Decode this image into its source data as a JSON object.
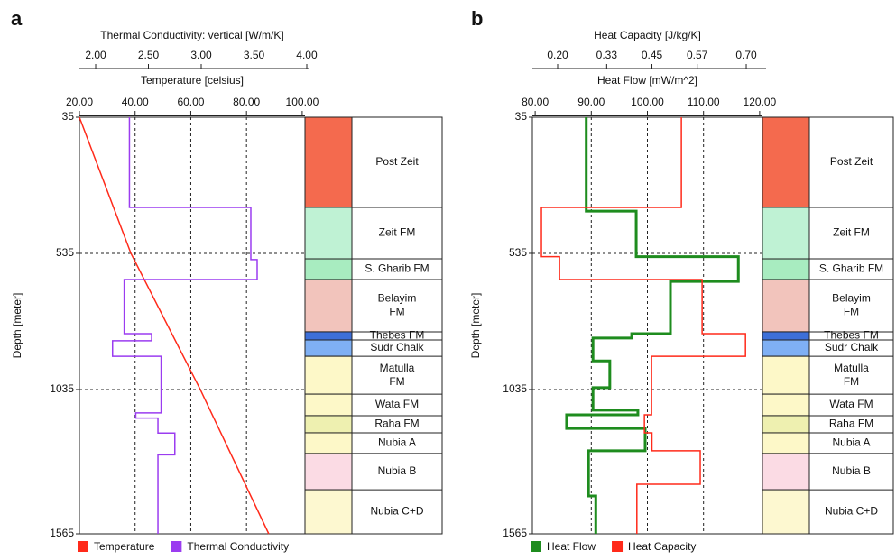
{
  "chart_data": [
    {
      "type": "well-log",
      "panel": "a",
      "x2label": "Thermal Conductivity: vertical [W/m/K]",
      "x2lim": [
        1.846,
        3.983
      ],
      "x2ticks": [
        {
          "value": 2.0,
          "label": "2.00"
        },
        {
          "value": 2.5,
          "label": "2.50"
        },
        {
          "value": 3.0,
          "label": "3.00"
        },
        {
          "value": 3.5,
          "label": "3.50"
        },
        {
          "value": 4.0,
          "label": "4.00"
        }
      ],
      "xlabel": "Temperature [celsius]",
      "xlim": [
        20,
        101
      ],
      "xticks": [
        {
          "value": 20,
          "label": "20.00"
        },
        {
          "value": 40,
          "label": "40.00"
        },
        {
          "value": 60,
          "label": "60.00"
        },
        {
          "value": 80,
          "label": "80.00"
        },
        {
          "value": 100,
          "label": "100.00"
        }
      ],
      "ylabel": "Depth [meter]",
      "ylim": [
        35,
        1565
      ],
      "yticks": [
        35,
        535,
        1035,
        1565
      ],
      "grid": true,
      "series": [
        {
          "name": "Temperature",
          "color": "#ff2a1a",
          "values": [
            20,
            38.5,
            63.4,
            88
          ],
          "depth": [
            35,
            535,
            1035,
            1565
          ]
        },
        {
          "name": "Thermal Conductivity",
          "color": "#9b3cf0",
          "axis": "x2",
          "values": [
            2.32,
            2.32,
            3.47,
            3.47,
            3.53,
            3.53,
            2.27,
            2.27,
            2.53,
            2.53,
            2.16,
            2.16,
            2.62,
            2.62,
            2.38,
            2.38,
            2.59,
            2.59,
            2.75,
            2.75,
            2.59,
            2.59
          ],
          "depth": [
            35,
            366,
            366,
            558,
            558,
            631,
            631,
            830,
            830,
            856,
            856,
            913,
            913,
            1121,
            1121,
            1140,
            1140,
            1195,
            1195,
            1275,
            1275,
            1565
          ]
        }
      ],
      "formations": [
        {
          "label": [
            "Post Zeit"
          ],
          "top": 35,
          "bottom": 366,
          "fill": "#f46a4e"
        },
        {
          "label": [
            "Zeit FM"
          ],
          "top": 366,
          "bottom": 555,
          "fill": "#bff2d4"
        },
        {
          "label": [
            "S. Gharib FM"
          ],
          "top": 555,
          "bottom": 631,
          "fill": "#a8ecc0"
        },
        {
          "label": [
            "Belayim",
            "FM"
          ],
          "top": 631,
          "bottom": 823,
          "fill": "#f2c4bc"
        },
        {
          "label": [
            "Thebes FM"
          ],
          "top": 823,
          "bottom": 853,
          "fill": "#3d6fd8"
        },
        {
          "label": [
            "Sudr Chalk"
          ],
          "top": 853,
          "bottom": 913,
          "fill": "#7fb0f4"
        },
        {
          "label": [
            "Matulla",
            "FM"
          ],
          "top": 913,
          "bottom": 1052,
          "fill": "#fdf8c8"
        },
        {
          "label": [
            "Wata FM"
          ],
          "top": 1052,
          "bottom": 1131,
          "fill": "#fdf8c8"
        },
        {
          "label": [
            "Raha FM"
          ],
          "top": 1131,
          "bottom": 1194,
          "fill": "#eef0b0"
        },
        {
          "label": [
            "Nubia  A"
          ],
          "top": 1194,
          "bottom": 1270,
          "fill": "#fdf8c8"
        },
        {
          "label": [
            "Nubia B"
          ],
          "top": 1270,
          "bottom": 1403,
          "fill": "#fbdbe4"
        },
        {
          "label": [
            "Nubia C+D"
          ],
          "top": 1403,
          "bottom": 1565,
          "fill": "#fdf8d0"
        }
      ]
    },
    {
      "type": "well-log",
      "panel": "b",
      "x2label": "Heat Capacity [J/kg/K]",
      "x2lim": [
        0.133,
        0.743
      ],
      "x2ticks": [
        {
          "value": 0.2,
          "label": "0.20"
        },
        {
          "value": 0.33,
          "label": "0.33"
        },
        {
          "value": 0.45,
          "label": "0.45"
        },
        {
          "value": 0.57,
          "label": "0.57"
        },
        {
          "value": 0.7,
          "label": "0.70"
        }
      ],
      "xlabel": "Heat Flow [mW/m^2]",
      "xlim": [
        79.5,
        120.5
      ],
      "xticks": [
        {
          "value": 80,
          "label": "80.00"
        },
        {
          "value": 90,
          "label": "90.00"
        },
        {
          "value": 100,
          "label": "100.00"
        },
        {
          "value": 110,
          "label": "110.00"
        },
        {
          "value": 120,
          "label": "120.00"
        }
      ],
      "ylabel": "Depth [meter]",
      "ylim": [
        35,
        1565
      ],
      "yticks": [
        35,
        535,
        1035,
        1565
      ],
      "grid": true,
      "series": [
        {
          "name": "Heat Flow",
          "color": "#1e8c1e",
          "values": [
            89.1,
            89.1,
            98.0,
            98.0,
            116.2,
            116.2,
            104.1,
            104.1,
            97.2,
            97.2,
            90.3,
            90.3,
            93.3,
            93.3,
            90.3,
            90.3,
            98.3,
            98.3,
            85.6,
            85.6,
            99.6,
            99.6,
            89.5,
            89.5,
            90.8,
            90.8
          ],
          "depth": [
            35,
            380,
            380,
            547,
            547,
            638,
            638,
            830,
            830,
            846,
            846,
            930,
            930,
            1028,
            1028,
            1111,
            1111,
            1128,
            1128,
            1178,
            1178,
            1260,
            1260,
            1426,
            1426,
            1565
          ]
        },
        {
          "name": "Heat Capacity",
          "color": "#ff2a1a",
          "axis": "x2",
          "values": [
            0.528,
            0.528,
            0.157,
            0.157,
            0.205,
            0.205,
            0.583,
            0.583,
            0.698,
            0.698,
            0.449,
            0.449,
            0.43,
            0.43,
            0.45,
            0.45,
            0.578,
            0.578,
            0.41,
            0.41
          ],
          "depth": [
            35,
            366,
            366,
            547,
            547,
            631,
            631,
            830,
            830,
            913,
            913,
            1128,
            1128,
            1194,
            1194,
            1260,
            1260,
            1383,
            1383,
            1565
          ]
        }
      ],
      "formations": [
        {
          "label": [
            "Post Zeit"
          ],
          "top": 35,
          "bottom": 366,
          "fill": "#f46a4e"
        },
        {
          "label": [
            "Zeit FM"
          ],
          "top": 366,
          "bottom": 555,
          "fill": "#bff2d4"
        },
        {
          "label": [
            "S. Gharib FM"
          ],
          "top": 555,
          "bottom": 631,
          "fill": "#a8ecc0"
        },
        {
          "label": [
            "Belayim",
            "FM"
          ],
          "top": 631,
          "bottom": 823,
          "fill": "#f2c4bc"
        },
        {
          "label": [
            "Thebes FM"
          ],
          "top": 823,
          "bottom": 853,
          "fill": "#3d6fd8"
        },
        {
          "label": [
            "Sudr Chalk"
          ],
          "top": 853,
          "bottom": 913,
          "fill": "#7fb0f4"
        },
        {
          "label": [
            "Matulla",
            "FM"
          ],
          "top": 913,
          "bottom": 1052,
          "fill": "#fdf8c8"
        },
        {
          "label": [
            "Wata FM"
          ],
          "top": 1052,
          "bottom": 1131,
          "fill": "#fdf8c8"
        },
        {
          "label": [
            "Raha FM"
          ],
          "top": 1131,
          "bottom": 1194,
          "fill": "#eef0b0"
        },
        {
          "label": [
            "Nubia  A"
          ],
          "top": 1194,
          "bottom": 1270,
          "fill": "#fdf8c8"
        },
        {
          "label": [
            "Nubia B"
          ],
          "top": 1270,
          "bottom": 1403,
          "fill": "#fbdbe4"
        },
        {
          "label": [
            "Nubia C+D"
          ],
          "top": 1403,
          "bottom": 1565,
          "fill": "#fdf8d0"
        }
      ]
    }
  ]
}
